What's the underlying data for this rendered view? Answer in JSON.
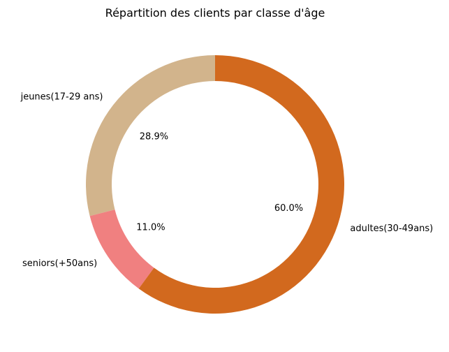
{
  "chart_data": {
    "type": "pie",
    "title": "Répartition des clients par classe d'âge",
    "donut": true,
    "start_angle_deg": 90,
    "counterclockwise": true,
    "slices": [
      {
        "label": "jeunes(17-29 ans)",
        "percent": 28.9,
        "percent_label": "28.9%",
        "color": "#d2b48c"
      },
      {
        "label": "seniors(+50ans)",
        "percent": 11.0,
        "percent_label": "11.0%",
        "color": "#f08080"
      },
      {
        "label": "adultes(30-49ans)",
        "percent": 60.0,
        "percent_label": "60.0%",
        "color": "#d2691e"
      }
    ]
  }
}
